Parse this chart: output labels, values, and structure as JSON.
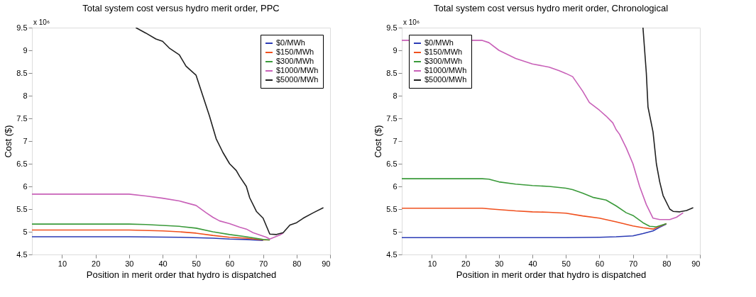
{
  "chart_data": [
    {
      "type": "line",
      "title": "Total system cost versus hydro merit order, PPC",
      "xlabel": "Position in merit order that hydro is dispatched",
      "ylabel": "Cost ($)",
      "annotations": [
        "x 10⁶"
      ],
      "xlim": [
        1,
        90
      ],
      "xticks": [
        10,
        20,
        30,
        40,
        50,
        60,
        70,
        80,
        90
      ],
      "ylim": [
        4.5,
        9.5
      ],
      "yticks": [
        4.5,
        5,
        5.5,
        6,
        6.5,
        7,
        7.5,
        8,
        8.5,
        9,
        9.5
      ],
      "grid": false,
      "legend": "top right",
      "marker": "none",
      "line_style": "solid",
      "series": [
        {
          "name": "$0/MWh",
          "color": "#2b3bb5",
          "x": [
            1,
            30,
            45,
            55,
            60,
            65,
            70
          ],
          "values": [
            4.89,
            4.89,
            4.88,
            4.86,
            4.84,
            4.83,
            4.81
          ]
        },
        {
          "name": "$150/MWh",
          "color": "#f0501e",
          "x": [
            1,
            30,
            40,
            45,
            50,
            55,
            60,
            65,
            70,
            72
          ],
          "values": [
            5.04,
            5.04,
            5.02,
            5.0,
            4.97,
            4.92,
            4.88,
            4.86,
            4.82,
            4.82
          ]
        },
        {
          "name": "$300/MWh",
          "color": "#3a9a3a",
          "x": [
            1,
            30,
            35,
            40,
            45,
            50,
            55,
            60,
            65,
            70,
            72
          ],
          "values": [
            5.17,
            5.17,
            5.16,
            5.14,
            5.12,
            5.08,
            5.0,
            4.94,
            4.89,
            4.83,
            4.82
          ]
        },
        {
          "name": "$1000/MWh",
          "color": "#c860b8",
          "x": [
            1,
            30,
            35,
            40,
            45,
            50,
            53,
            55,
            57,
            60,
            63,
            65,
            67,
            69,
            71,
            72,
            75,
            76
          ],
          "values": [
            5.83,
            5.83,
            5.79,
            5.74,
            5.68,
            5.58,
            5.42,
            5.32,
            5.24,
            5.18,
            5.1,
            5.06,
            4.98,
            4.93,
            4.88,
            4.84,
            4.93,
            4.97
          ]
        },
        {
          "name": "$5000/MWh",
          "color": "#202020",
          "x": [
            32,
            35,
            38,
            40,
            42,
            45,
            47,
            50,
            52,
            54,
            56,
            58,
            60,
            62,
            63,
            65,
            66,
            68,
            70,
            72,
            74,
            76,
            78,
            80,
            82,
            85,
            88
          ],
          "values": [
            9.5,
            9.38,
            9.25,
            9.2,
            9.05,
            8.9,
            8.65,
            8.45,
            8.0,
            7.55,
            7.05,
            6.75,
            6.5,
            6.35,
            6.22,
            6.0,
            5.75,
            5.45,
            5.3,
            4.95,
            4.94,
            4.98,
            5.15,
            5.2,
            5.3,
            5.42,
            5.53
          ]
        }
      ]
    },
    {
      "type": "line",
      "title": "Total system cost versus hydro merit order, Chronological",
      "xlabel": "Position in merit order that hydro is dispatched",
      "ylabel": "Cost ($)",
      "annotations": [
        "x 10⁶"
      ],
      "xlim": [
        1,
        90
      ],
      "xticks": [
        10,
        20,
        30,
        40,
        50,
        60,
        70,
        80,
        90
      ],
      "ylim": [
        4.5,
        9.5
      ],
      "yticks": [
        4.5,
        5,
        5.5,
        6,
        6.5,
        7,
        7.5,
        8,
        8.5,
        9,
        9.5
      ],
      "grid": false,
      "legend": "top left",
      "marker": "none",
      "line_style": "solid",
      "series": [
        {
          "name": "$0/MWh",
          "color": "#2b3bb5",
          "x": [
            1,
            30,
            50,
            60,
            65,
            70,
            73,
            76,
            78,
            80
          ],
          "values": [
            4.87,
            4.87,
            4.87,
            4.88,
            4.89,
            4.91,
            4.96,
            5.02,
            5.1,
            5.17
          ]
        },
        {
          "name": "$150/MWh",
          "color": "#f0501e",
          "x": [
            1,
            25,
            28,
            35,
            40,
            45,
            50,
            55,
            60,
            65,
            70,
            73,
            76,
            78,
            80
          ],
          "values": [
            5.52,
            5.52,
            5.5,
            5.46,
            5.44,
            5.43,
            5.41,
            5.35,
            5.3,
            5.22,
            5.13,
            5.09,
            5.06,
            5.12,
            5.18
          ]
        },
        {
          "name": "$300/MWh",
          "color": "#3a9a3a",
          "x": [
            1,
            25,
            27,
            30,
            35,
            40,
            45,
            50,
            52,
            55,
            58,
            62,
            65,
            68,
            70,
            73,
            75,
            77,
            80
          ],
          "values": [
            6.17,
            6.17,
            6.16,
            6.1,
            6.05,
            6.02,
            6.0,
            5.96,
            5.93,
            5.85,
            5.76,
            5.7,
            5.57,
            5.42,
            5.36,
            5.2,
            5.12,
            5.11,
            5.18
          ]
        },
        {
          "name": "$1000/MWh",
          "color": "#c860b8",
          "x": [
            1,
            25,
            27,
            30,
            35,
            40,
            45,
            48,
            50,
            52,
            55,
            57,
            60,
            62,
            64,
            65,
            66,
            68,
            70,
            72,
            74,
            76,
            78,
            81,
            83,
            85
          ],
          "values": [
            9.22,
            9.22,
            9.17,
            9.0,
            8.82,
            8.7,
            8.63,
            8.55,
            8.49,
            8.42,
            8.1,
            7.85,
            7.68,
            7.55,
            7.4,
            7.25,
            7.15,
            6.85,
            6.5,
            6.0,
            5.6,
            5.3,
            5.27,
            5.27,
            5.32,
            5.42
          ]
        },
        {
          "name": "$5000/MWh",
          "color": "#202020",
          "x": [
            73,
            74,
            74.5,
            76,
            77,
            78,
            79,
            81,
            82,
            84,
            86,
            88
          ],
          "values": [
            9.5,
            8.5,
            7.75,
            7.2,
            6.5,
            6.1,
            5.8,
            5.5,
            5.45,
            5.44,
            5.47,
            5.53
          ]
        }
      ]
    }
  ]
}
